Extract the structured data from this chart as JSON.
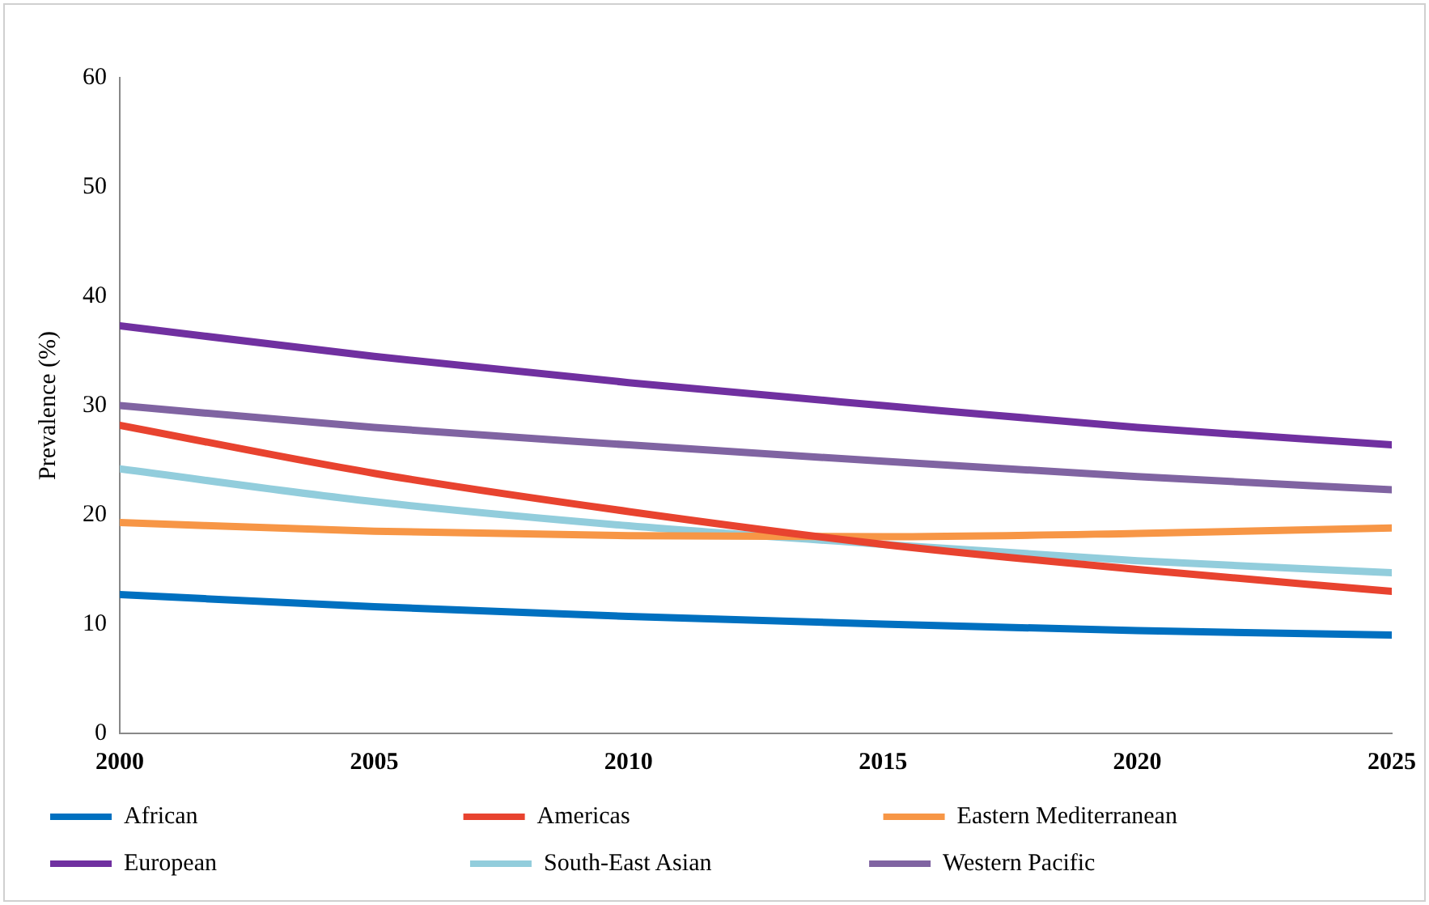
{
  "chart_data": {
    "type": "line",
    "ylabel": "Prevalence (%)",
    "x": [
      2000,
      2005,
      2010,
      2015,
      2020,
      2025
    ],
    "xlim": [
      2000,
      2025
    ],
    "xticks": [
      2000,
      2005,
      2010,
      2015,
      2020,
      2025
    ],
    "ylim": [
      0,
      60
    ],
    "yticks": [
      0,
      10,
      20,
      30,
      40,
      50,
      60
    ],
    "grid": false,
    "legend": "bottom",
    "marker": "none",
    "line_style": "solid",
    "series": [
      {
        "name": "African",
        "color": "#0070c0",
        "values": [
          12.7,
          11.6,
          10.7,
          10.0,
          9.4,
          9.0
        ]
      },
      {
        "name": "Americas",
        "color": "#e8432f",
        "values": [
          28.2,
          23.8,
          20.3,
          17.3,
          15.0,
          13.0
        ]
      },
      {
        "name": "Eastern Mediterranean",
        "color": "#f79646",
        "values": [
          19.3,
          18.5,
          18.1,
          18.0,
          18.3,
          18.8
        ]
      },
      {
        "name": "European",
        "color": "#7030a0",
        "values": [
          37.3,
          34.5,
          32.1,
          30.0,
          28.0,
          26.4
        ]
      },
      {
        "name": "South-East Asian",
        "color": "#92cddc",
        "values": [
          24.2,
          21.2,
          19.0,
          17.3,
          15.8,
          14.7
        ]
      },
      {
        "name": "Western Pacific",
        "color": "#8064a2",
        "values": [
          30.0,
          28.0,
          26.4,
          24.9,
          23.5,
          22.3
        ]
      }
    ]
  }
}
